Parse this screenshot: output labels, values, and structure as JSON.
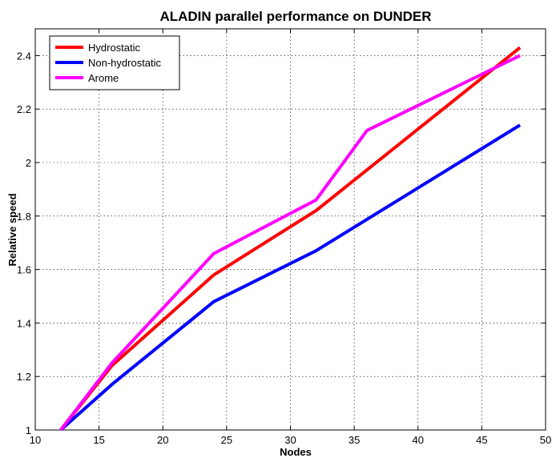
{
  "chart_data": {
    "type": "line",
    "title": "ALADIN parallel performance on DUNDER",
    "xlabel": "Nodes",
    "ylabel": "Relative speed",
    "xlim": [
      10,
      50
    ],
    "ylim": [
      1,
      2.5
    ],
    "xticks": [
      10,
      15,
      20,
      25,
      30,
      35,
      40,
      45,
      50
    ],
    "yticks": [
      1,
      1.2,
      1.4,
      1.6,
      1.8,
      2,
      2.2,
      2.4
    ],
    "xtick_labels": [
      "10",
      "15",
      "20",
      "25",
      "30",
      "35",
      "40",
      "45",
      "50"
    ],
    "ytick_labels": [
      "1",
      "1.2",
      "1.4",
      "1.6",
      "1.8",
      "2",
      "2.2",
      "2.4"
    ],
    "grid": true,
    "legend_position": "top-left",
    "series": [
      {
        "name": "Hydrostatic",
        "color": "#ff0000",
        "x": [
          12,
          16,
          24,
          32,
          48
        ],
        "y": [
          1.0,
          1.24,
          1.58,
          1.82,
          2.43
        ]
      },
      {
        "name": "Non-hydrostatic",
        "color": "#0000ff",
        "x": [
          12,
          16,
          24,
          32,
          48
        ],
        "y": [
          1.0,
          1.17,
          1.48,
          1.67,
          2.14
        ]
      },
      {
        "name": "Arome",
        "color": "#ff00ff",
        "x": [
          12,
          16,
          24,
          32,
          36,
          48
        ],
        "y": [
          1.0,
          1.25,
          1.66,
          1.86,
          2.12,
          2.4
        ]
      }
    ]
  }
}
